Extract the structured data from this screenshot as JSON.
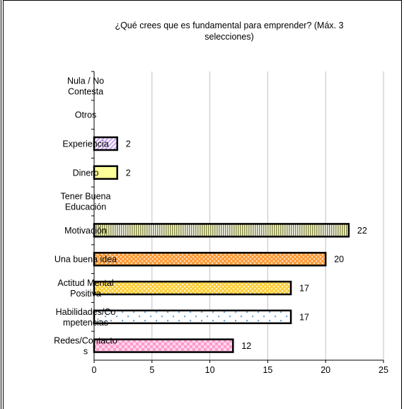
{
  "chart_data": {
    "type": "bar",
    "orientation": "horizontal",
    "title": "¿Qué crees que es fundamental para emprender? (Máx. 3 selecciones)",
    "title_lines": [
      "¿Qué crees que es fundamental para emprender? (Máx. 3",
      "selecciones)"
    ],
    "categories": [
      "Nula / No Contesta",
      "Otros",
      "Experiencia",
      "Dinero",
      "Tener Buena Educación",
      "Motivación",
      "Una buena idea",
      "Actitud Mental Positiva",
      "Habilidades/Competencias",
      "Redes/Contactos"
    ],
    "category_label_lines": [
      [
        "Nula / No",
        "Contesta"
      ],
      [
        "Otros"
      ],
      [
        "Experiencia"
      ],
      [
        "Dinero"
      ],
      [
        "Tener Buena",
        "Educación"
      ],
      [
        "Motivación"
      ],
      [
        "Una buena idea"
      ],
      [
        "Actitud Mental",
        "Positiva"
      ],
      [
        "Habilidades/Co",
        "mpetencias"
      ],
      [
        "Redes/Contacto",
        "s"
      ]
    ],
    "values": [
      0,
      0,
      2,
      2,
      0,
      22,
      20,
      17,
      17,
      12
    ],
    "data_labels": [
      "",
      "",
      "2",
      "2",
      "",
      "22",
      "20",
      "17",
      "17",
      "12"
    ],
    "xlim": [
      0,
      25
    ],
    "xticks": [
      "0",
      "5",
      "10",
      "15",
      "20",
      "25"
    ],
    "grid": "vertical",
    "bar_colors": [
      "#ffffff",
      "#ffffff",
      "#c9a6f0",
      "#ffff99",
      "#ffffff",
      "#b5b869",
      "#ff9933",
      "#ffcc33",
      "#ffffff",
      "#ff99cc"
    ],
    "bar_patterns": [
      "none",
      "none",
      "diagonal",
      "solid",
      "none",
      "vertical-stripes",
      "lattice",
      "lattice",
      "sparse-dots",
      "checker"
    ]
  }
}
